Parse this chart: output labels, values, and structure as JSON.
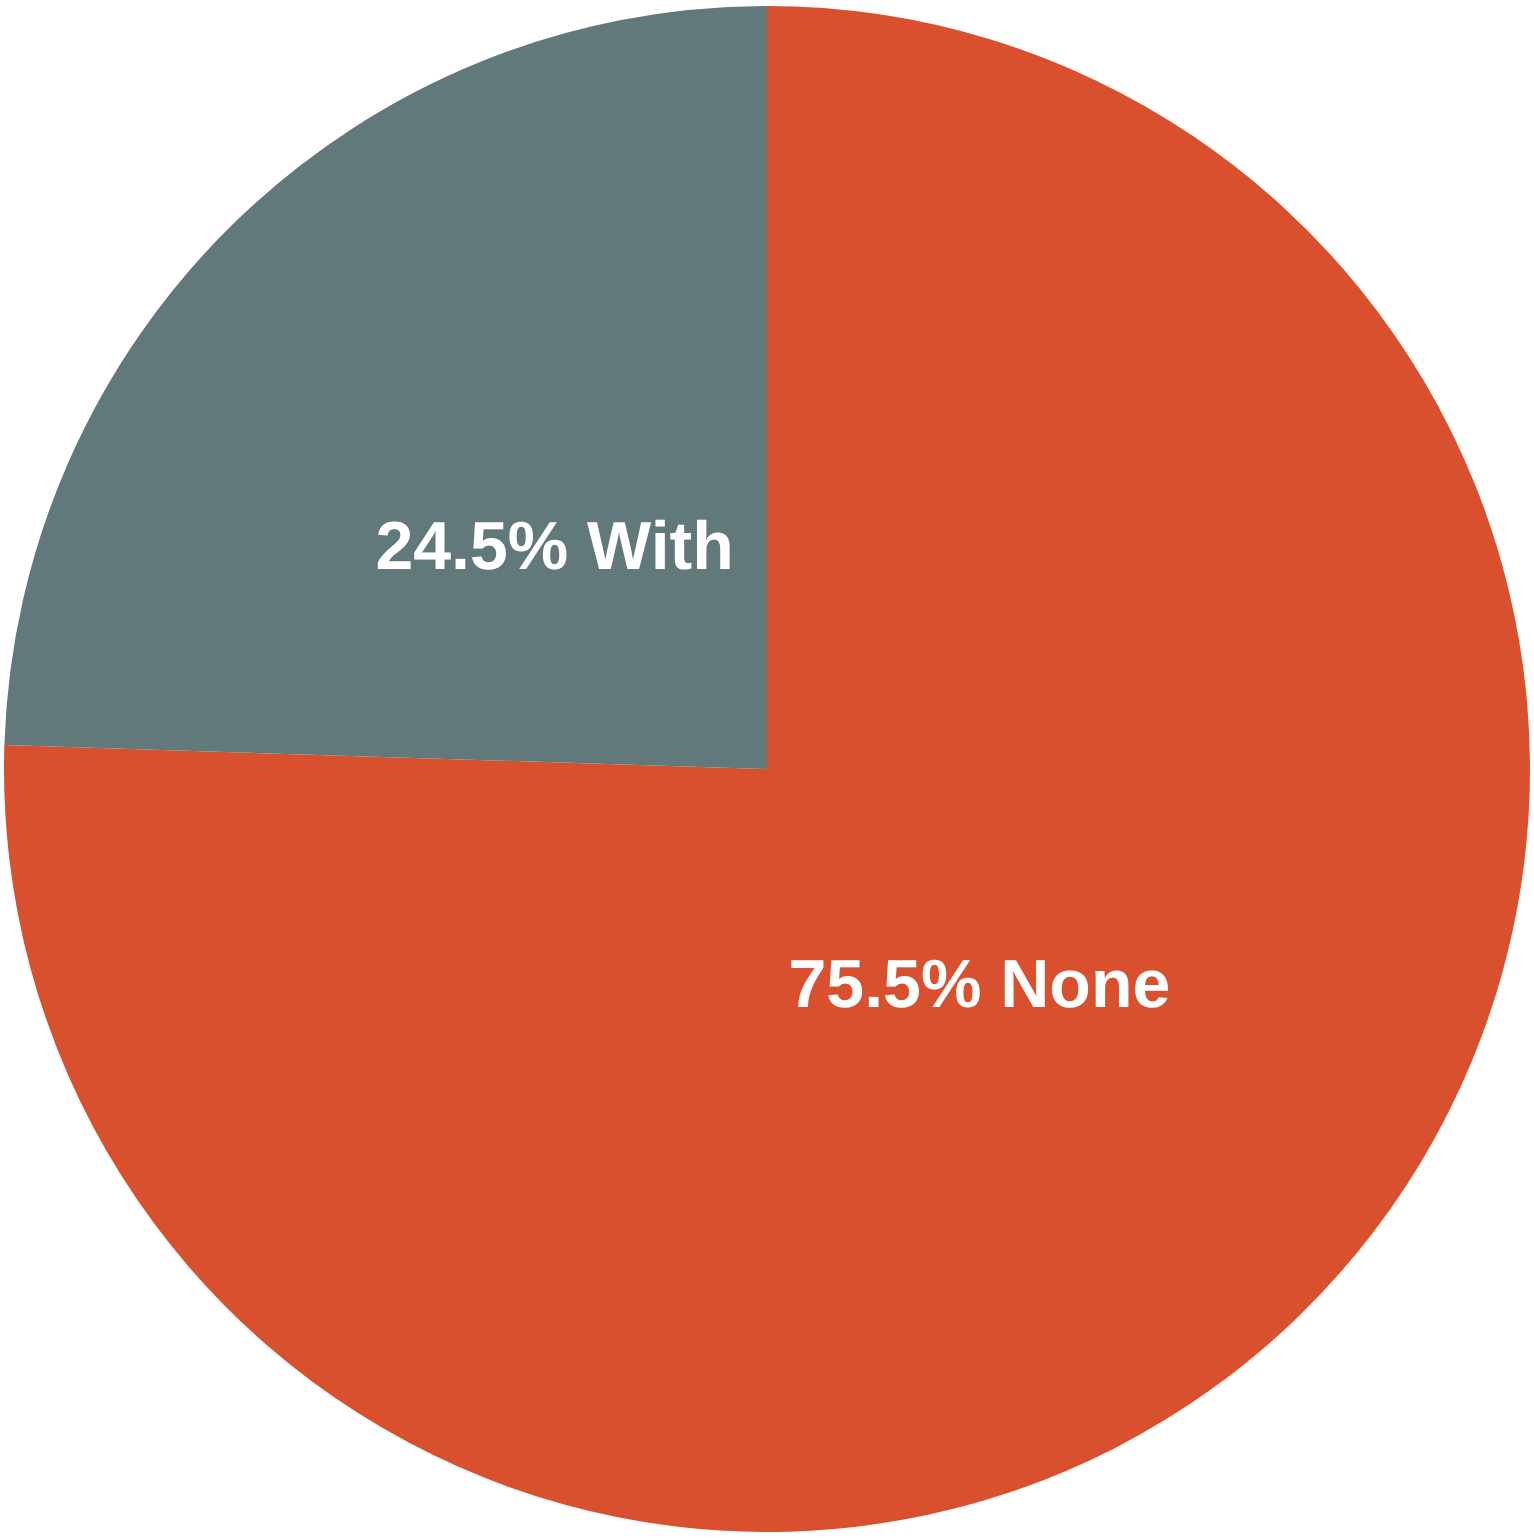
{
  "chart_data": {
    "type": "pie",
    "categories": [
      "None",
      "With"
    ],
    "values": [
      75.5,
      24.5
    ],
    "colors": [
      "#d9502f",
      "#62797c"
    ],
    "value_labels": [
      "75.5%",
      "24.5%"
    ],
    "legend": false
  }
}
